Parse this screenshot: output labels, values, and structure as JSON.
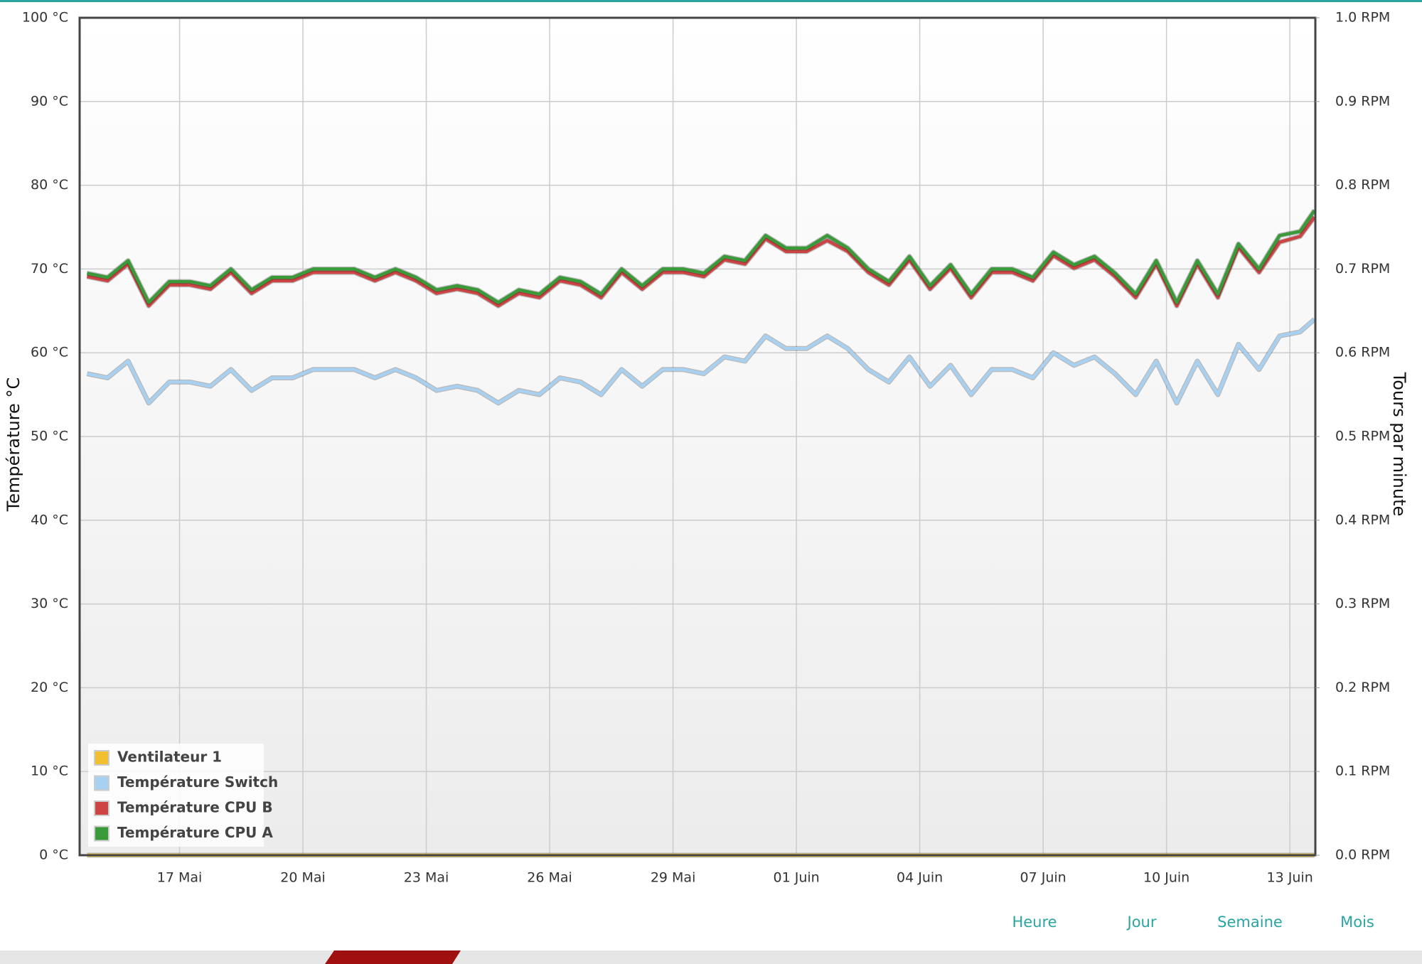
{
  "chart_data": {
    "type": "line",
    "y_label": "Température °C",
    "y2_label": "Tours par minute",
    "xlim": [
      14.57,
      44.62
    ],
    "xticks": [
      {
        "value": 17,
        "label": "17 Mai"
      },
      {
        "value": 20,
        "label": "20 Mai"
      },
      {
        "value": 23,
        "label": "23 Mai"
      },
      {
        "value": 26,
        "label": "26 Mai"
      },
      {
        "value": 29,
        "label": "29 Mai"
      },
      {
        "value": 32,
        "label": "01 Juin"
      },
      {
        "value": 35,
        "label": "04 Juin"
      },
      {
        "value": 38,
        "label": "07 Juin"
      },
      {
        "value": 41,
        "label": "10 Juin"
      },
      {
        "value": 44,
        "label": "13 Juin"
      }
    ],
    "ylim": [
      0,
      100
    ],
    "yticks": [
      {
        "value": 0,
        "label": "0 °C"
      },
      {
        "value": 10,
        "label": "10 °C"
      },
      {
        "value": 20,
        "label": "20 °C"
      },
      {
        "value": 30,
        "label": "30 °C"
      },
      {
        "value": 40,
        "label": "40 °C"
      },
      {
        "value": 50,
        "label": "50 °C"
      },
      {
        "value": 60,
        "label": "60 °C"
      },
      {
        "value": 70,
        "label": "70 °C"
      },
      {
        "value": 80,
        "label": "80 °C"
      },
      {
        "value": 90,
        "label": "90 °C"
      },
      {
        "value": 100,
        "label": "100 °C"
      }
    ],
    "y2lim": [
      0,
      1
    ],
    "y2ticks": [
      {
        "value": 0,
        "label": "0.0 RPM"
      },
      {
        "value": 0.1,
        "label": "0.1 RPM"
      },
      {
        "value": 0.2,
        "label": "0.2 RPM"
      },
      {
        "value": 0.3,
        "label": "0.3 RPM"
      },
      {
        "value": 0.4,
        "label": "0.4 RPM"
      },
      {
        "value": 0.5,
        "label": "0.5 RPM"
      },
      {
        "value": 0.6,
        "label": "0.6 RPM"
      },
      {
        "value": 0.7,
        "label": "0.7 RPM"
      },
      {
        "value": 0.8,
        "label": "0.8 RPM"
      },
      {
        "value": 0.9,
        "label": "0.9 RPM"
      },
      {
        "value": 1,
        "label": "1.0 RPM"
      }
    ],
    "grid": true,
    "legend": "bottom-left",
    "x": [
      14.75,
      15.25,
      15.75,
      16.25,
      16.75,
      17.25,
      17.75,
      18.25,
      18.75,
      19.25,
      19.75,
      20.25,
      20.75,
      21.25,
      21.75,
      22.25,
      22.75,
      23.25,
      23.75,
      24.25,
      24.75,
      25.25,
      25.75,
      26.25,
      26.75,
      27.25,
      27.75,
      28.25,
      28.75,
      29.25,
      29.75,
      30.25,
      30.75,
      31.25,
      31.75,
      32.25,
      32.75,
      33.25,
      33.75,
      34.25,
      34.75,
      35.25,
      35.75,
      36.25,
      36.75,
      37.25,
      37.75,
      38.25,
      38.75,
      39.25,
      39.75,
      40.25,
      40.75,
      41.25,
      41.75,
      42.25,
      42.75,
      43.25,
      43.75,
      44.25,
      44.6
    ],
    "series": [
      {
        "name": "Ventilateur 1",
        "color": "#f0c030",
        "axis": "y2",
        "values": [
          0,
          0,
          0,
          0,
          0,
          0,
          0,
          0,
          0,
          0,
          0,
          0,
          0,
          0,
          0,
          0,
          0,
          0,
          0,
          0,
          0,
          0,
          0,
          0,
          0,
          0,
          0,
          0,
          0,
          0,
          0,
          0,
          0,
          0,
          0,
          0,
          0,
          0,
          0,
          0,
          0,
          0,
          0,
          0,
          0,
          0,
          0,
          0,
          0,
          0,
          0,
          0,
          0,
          0,
          0,
          0,
          0,
          0,
          0,
          0,
          0
        ]
      },
      {
        "name": "Température Switch",
        "color": "#a8d0f0",
        "values": [
          57.5,
          57,
          59,
          54,
          56.5,
          56.5,
          56,
          58,
          55.5,
          57,
          57,
          58,
          58,
          58,
          57,
          58,
          57,
          55.5,
          56,
          55.5,
          54,
          55.5,
          55,
          57,
          56.5,
          55,
          58,
          56,
          58,
          58,
          57.5,
          59.5,
          59,
          62,
          60.5,
          60.5,
          62,
          60.5,
          58,
          56.5,
          59.5,
          56,
          58.5,
          55,
          58,
          58,
          57,
          60,
          58.5,
          59.5,
          57.5,
          55,
          59,
          54,
          59,
          55,
          61,
          58,
          62,
          62.5,
          64
        ]
      },
      {
        "name": "Température CPU B",
        "color": "#cc4444",
        "values": [
          69.1,
          68.6,
          70.6,
          65.6,
          68.1,
          68.1,
          67.6,
          69.6,
          67.1,
          68.6,
          68.6,
          69.6,
          69.6,
          69.6,
          68.6,
          69.6,
          68.6,
          67.1,
          67.6,
          67.1,
          65.6,
          67.1,
          66.6,
          68.6,
          68.1,
          66.6,
          69.6,
          67.6,
          69.6,
          69.6,
          69.1,
          71.1,
          70.6,
          73.6,
          72.1,
          72.1,
          73.4,
          72.1,
          69.6,
          68.1,
          71.1,
          67.6,
          70.1,
          66.6,
          69.6,
          69.6,
          68.6,
          71.6,
          70.1,
          71.1,
          69.1,
          66.6,
          70.6,
          65.6,
          70.6,
          66.6,
          72.6,
          69.6,
          73.2,
          73.9,
          76.2
        ]
      },
      {
        "name": "Température CPU A",
        "color": "#3a9a3a",
        "values": [
          69.5,
          69,
          71,
          66,
          68.5,
          68.5,
          68,
          70,
          67.5,
          69,
          69,
          70,
          70,
          70,
          69,
          70,
          69,
          67.5,
          68,
          67.5,
          66,
          67.5,
          67,
          69,
          68.5,
          67,
          70,
          68,
          70,
          70,
          69.5,
          71.5,
          71,
          74,
          72.5,
          72.5,
          74,
          72.5,
          70,
          68.5,
          71.5,
          68,
          70.5,
          67,
          70,
          70,
          69,
          72,
          70.5,
          71.5,
          69.5,
          67,
          71,
          66,
          71,
          67,
          73,
          70,
          74,
          74.5,
          77
        ]
      }
    ],
    "links": [
      "Heure",
      "Jour",
      "Semaine",
      "Mois"
    ]
  }
}
